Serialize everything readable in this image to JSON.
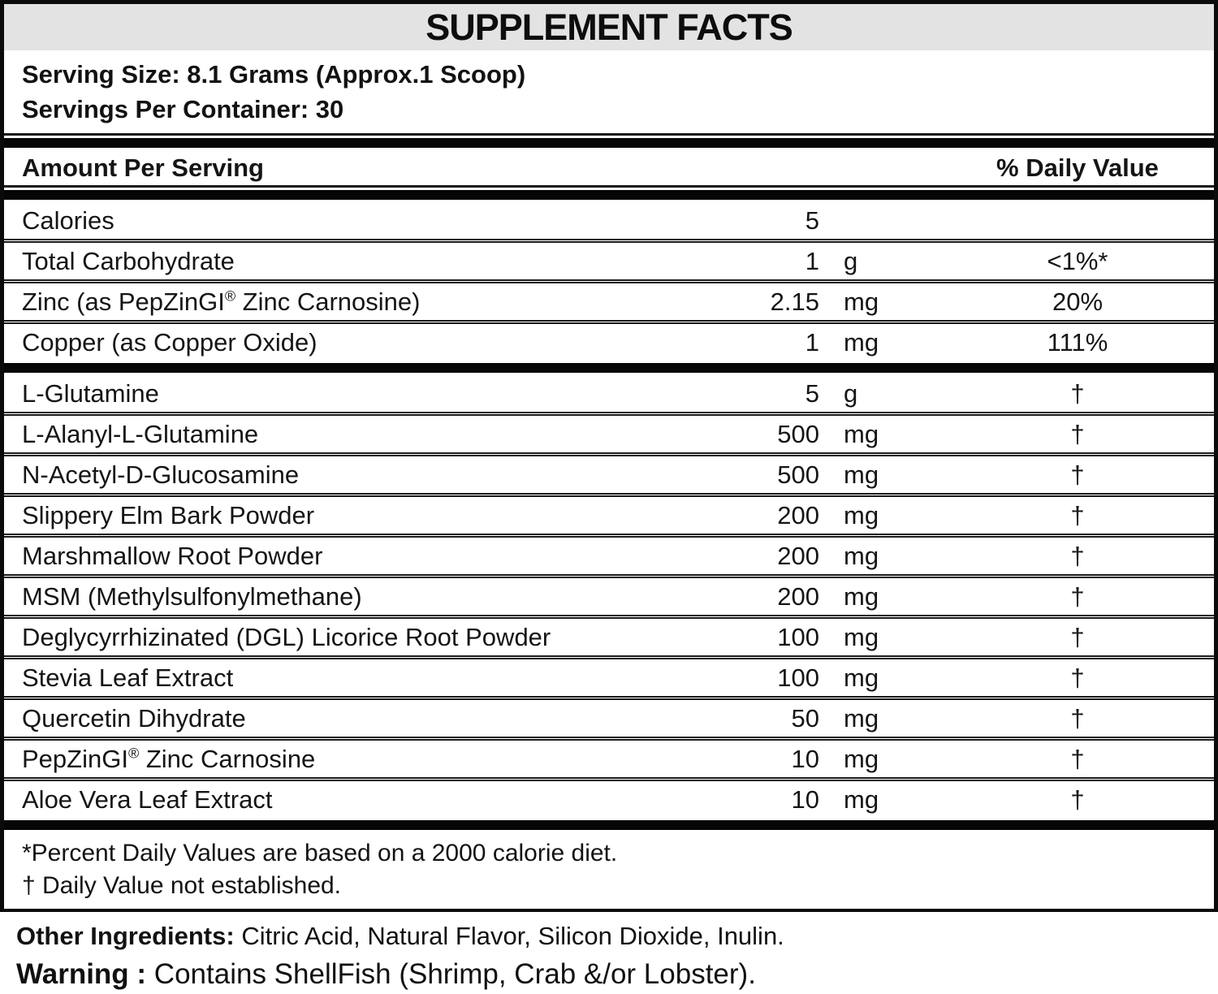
{
  "title": "SUPPLEMENT FACTS",
  "serving": {
    "serving_size": "Serving Size: 8.1 Grams (Approx.1 Scoop)",
    "servings_per_container": "Servings Per Container: 30"
  },
  "table": {
    "header": {
      "amount_label": "Amount Per Serving",
      "dv_label": "% Daily Value"
    },
    "macro_rows": [
      {
        "name": "Calories",
        "amount": "5",
        "unit": "",
        "dv": ""
      },
      {
        "name": "Total Carbohydrate",
        "amount": "1",
        "unit": "g",
        "dv": "<1%*"
      },
      {
        "name": "Zinc (as PepZinGI® Zinc Carnosine)",
        "amount": "2.15",
        "unit": "mg",
        "dv": "20%"
      },
      {
        "name": "Copper (as Copper Oxide)",
        "amount": "1",
        "unit": "mg",
        "dv": "111%"
      }
    ],
    "ingredient_rows": [
      {
        "name": "L-Glutamine",
        "amount": "5",
        "unit": "g",
        "dv": "†"
      },
      {
        "name": "L-Alanyl-L-Glutamine",
        "amount": "500",
        "unit": "mg",
        "dv": "†"
      },
      {
        "name": "N-Acetyl-D-Glucosamine",
        "amount": "500",
        "unit": "mg",
        "dv": "†"
      },
      {
        "name": "Slippery Elm Bark Powder",
        "amount": "200",
        "unit": "mg",
        "dv": "†"
      },
      {
        "name": "Marshmallow Root Powder",
        "amount": "200",
        "unit": "mg",
        "dv": "†"
      },
      {
        "name": "MSM (Methylsulfonylmethane)",
        "amount": "200",
        "unit": "mg",
        "dv": "†"
      },
      {
        "name": "Deglycyrrhizinated (DGL) Licorice Root Powder",
        "amount": "100",
        "unit": "mg",
        "dv": "†"
      },
      {
        "name": "Stevia Leaf Extract",
        "amount": "100",
        "unit": "mg",
        "dv": "†"
      },
      {
        "name": "Quercetin Dihydrate",
        "amount": "50",
        "unit": "mg",
        "dv": "†"
      },
      {
        "name": "PepZinGI® Zinc Carnosine",
        "amount": "10",
        "unit": "mg",
        "dv": "†"
      },
      {
        "name": "Aloe Vera Leaf Extract",
        "amount": "10",
        "unit": "mg",
        "dv": "†"
      }
    ]
  },
  "footnotes": {
    "percent_dv": "*Percent Daily Values are based on a 2000 calorie diet.",
    "dagger": "† Daily Value not established."
  },
  "other_ingredients": {
    "label": "Other Ingredients:",
    "text": " Citric Acid, Natural Flavor, Silicon Dioxide, Inulin."
  },
  "warning": {
    "label": "Warning :",
    "text": " Contains ShellFish (Shrimp, Crab &/or Lobster)."
  },
  "colors": {
    "title_band": "#e3e3e3",
    "border": "#0b0b0b",
    "text": "#151515"
  }
}
